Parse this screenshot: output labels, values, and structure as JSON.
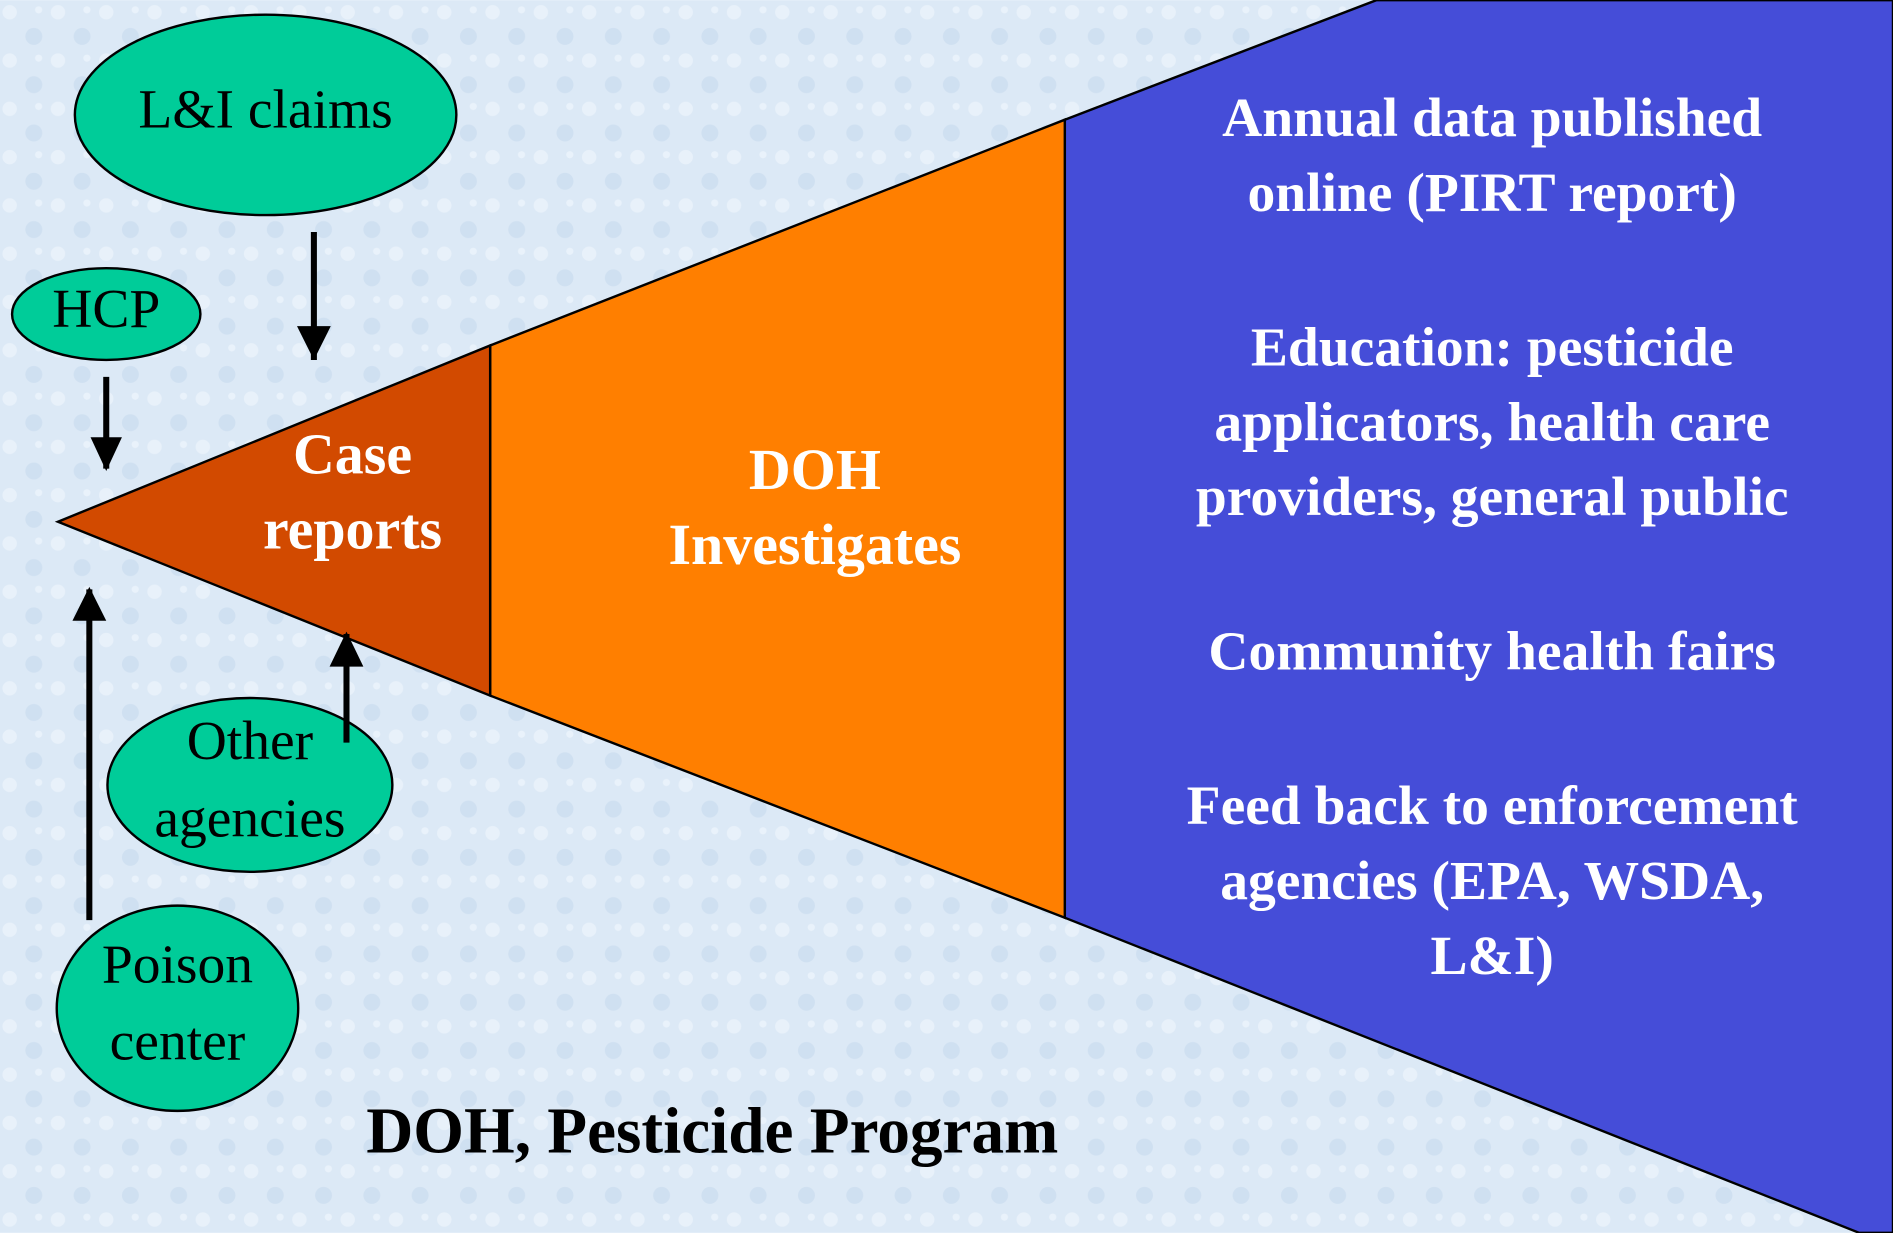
{
  "sources": [
    {
      "lines": [
        "L&I claims"
      ]
    },
    {
      "lines": [
        "HCP"
      ]
    },
    {
      "lines": [
        "Other",
        "agencies"
      ]
    },
    {
      "lines": [
        "Poison",
        "center"
      ]
    }
  ],
  "stages": [
    {
      "lines": [
        "Case",
        "reports"
      ]
    },
    {
      "lines": [
        "DOH",
        "Investigates"
      ]
    }
  ],
  "outputs": [
    {
      "lines": [
        "Annual data published",
        "online (PIRT report)"
      ]
    },
    {
      "lines": [
        "Education: pesticide",
        "applicators, health care",
        "providers, general public"
      ]
    },
    {
      "lines": [
        "Community health fairs"
      ]
    },
    {
      "lines": [
        "Feed back to enforcement",
        "agencies (EPA, WSDA,",
        "L&I)"
      ]
    }
  ],
  "footer": "DOH, Pesticide Program"
}
